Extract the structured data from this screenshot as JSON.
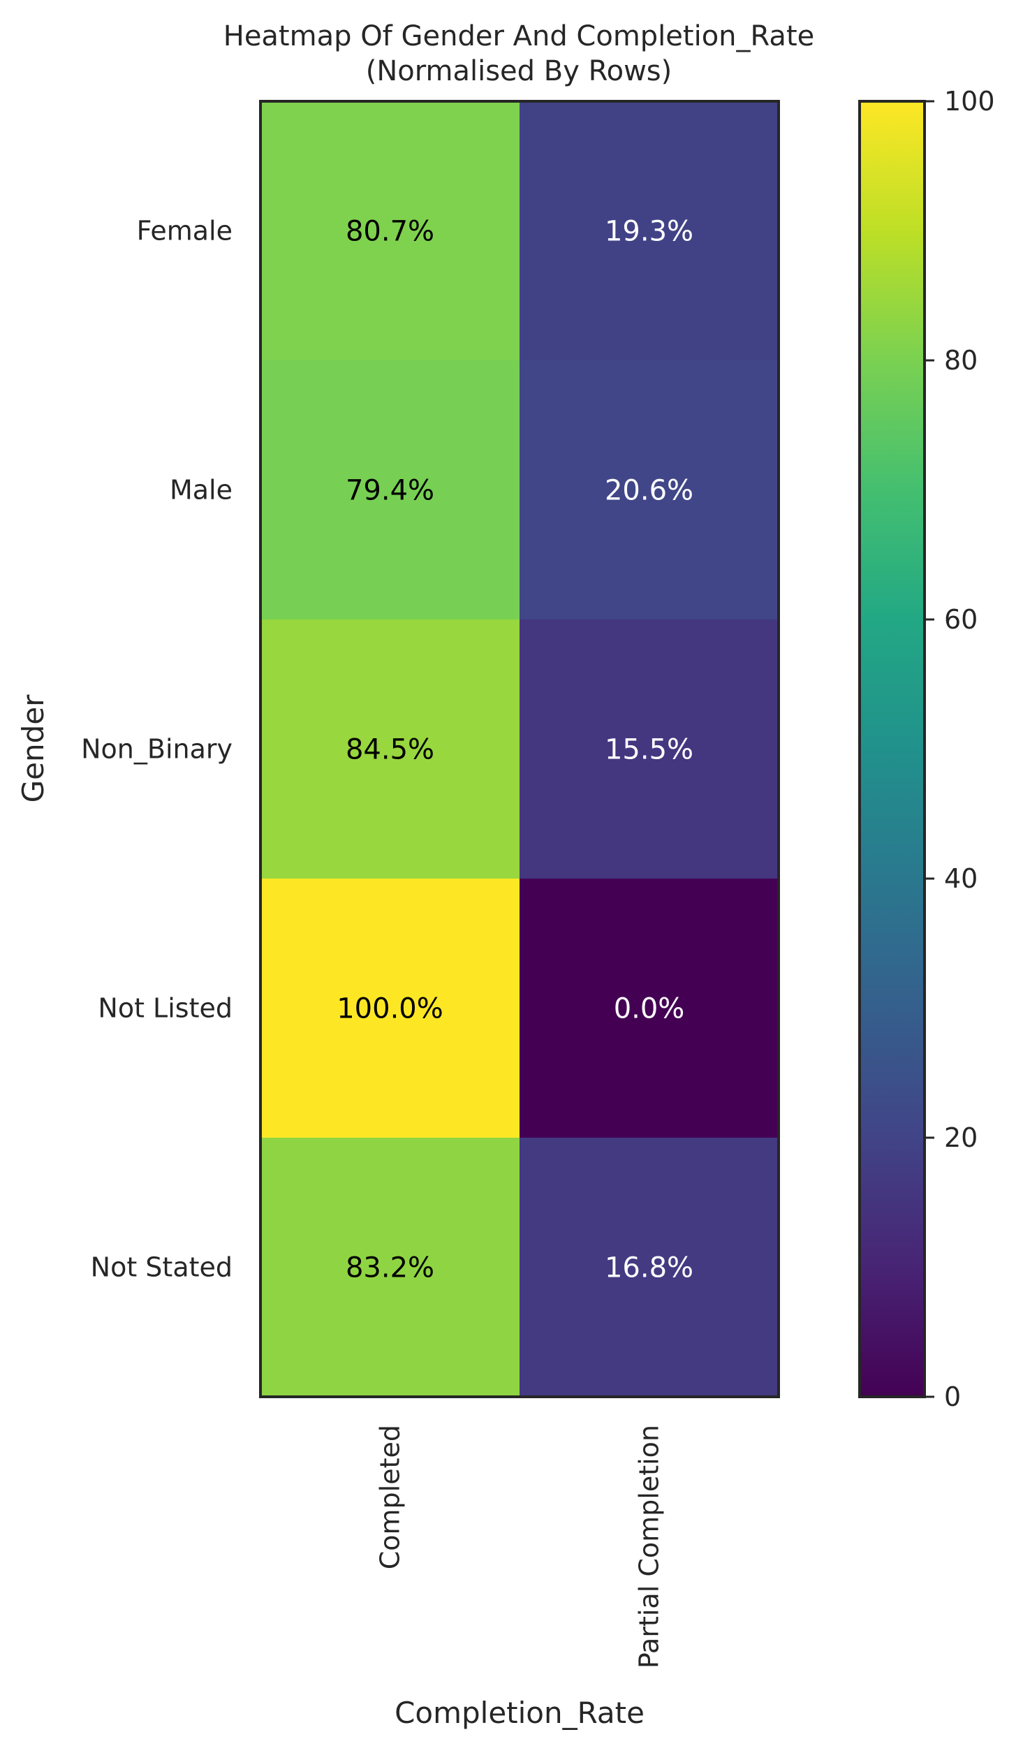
{
  "chart_data": {
    "type": "heatmap",
    "title": "Heatmap Of Gender And Completion_Rate",
    "subtitle": "(Normalised By Rows)",
    "xlabel": "Completion_Rate",
    "ylabel": "Gender",
    "columns": [
      "Completed",
      "Partial Completion"
    ],
    "rows": [
      "Female",
      "Male",
      "Non_Binary",
      "Not Listed",
      "Not Stated"
    ],
    "values": [
      [
        80.7,
        19.3
      ],
      [
        79.4,
        20.6
      ],
      [
        84.5,
        15.5
      ],
      [
        100.0,
        0.0
      ],
      [
        83.2,
        16.8
      ]
    ],
    "value_labels": [
      [
        "80.7%",
        "19.3%"
      ],
      [
        "79.4%",
        "20.6%"
      ],
      [
        "84.5%",
        "15.5%"
      ],
      [
        "100.0%",
        "0.0%"
      ],
      [
        "83.2%",
        "16.8%"
      ]
    ],
    "colormap": "viridis",
    "colorbar": {
      "range": [
        0,
        100
      ],
      "ticks": [
        "0",
        "20",
        "40",
        "60",
        "80",
        "100"
      ]
    },
    "grid": false
  }
}
